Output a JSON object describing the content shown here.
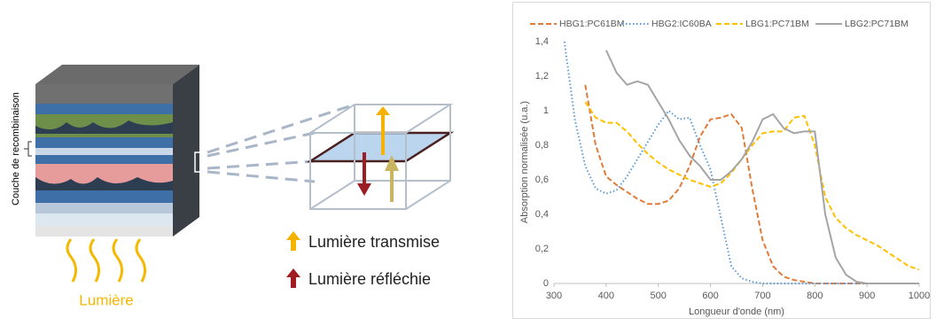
{
  "diagram": {
    "recombination_label": "Couche de recombinaison",
    "transmitted": "Lumière transmise",
    "reflected": "Lumière réfléchie",
    "light": "Lumière"
  },
  "chart_data": {
    "type": "line",
    "xlabel": "Longueur d'onde (nm)",
    "ylabel": "Absorption normalisée (u.a.)",
    "x": [
      320,
      340,
      360,
      380,
      400,
      420,
      440,
      460,
      480,
      500,
      520,
      540,
      560,
      580,
      600,
      620,
      640,
      660,
      680,
      700,
      720,
      740,
      760,
      780,
      800,
      820,
      840,
      860,
      880,
      900,
      920,
      940,
      960,
      980,
      1000
    ],
    "series": [
      {
        "name": "HBG1:PC61BM",
        "color": "#e07b39",
        "style": "dashed",
        "values": [
          null,
          null,
          1.15,
          0.8,
          0.62,
          0.57,
          0.53,
          0.49,
          0.46,
          0.46,
          0.48,
          0.55,
          0.68,
          0.85,
          0.95,
          0.96,
          0.98,
          0.9,
          0.55,
          0.25,
          0.1,
          0.04,
          0.02,
          0.01,
          0,
          0,
          0,
          0,
          0,
          0,
          0,
          0,
          0,
          0,
          0
        ]
      },
      {
        "name": "HBG2:IC60BA",
        "color": "#5b9bd5",
        "style": "dotted",
        "values": [
          1.4,
          0.95,
          0.68,
          0.55,
          0.52,
          0.54,
          0.62,
          0.72,
          0.82,
          0.92,
          1.0,
          0.95,
          0.96,
          0.8,
          0.66,
          0.38,
          0.1,
          0.03,
          0.01,
          0,
          0,
          0,
          0,
          0,
          0,
          0,
          0,
          0,
          0,
          0,
          0,
          0,
          0,
          0,
          0
        ]
      },
      {
        "name": "LBG1:PC71BM",
        "color": "#ffc000",
        "style": "dashed",
        "values": [
          null,
          null,
          1.05,
          0.96,
          0.93,
          0.93,
          0.88,
          0.81,
          0.75,
          0.7,
          0.66,
          0.63,
          0.6,
          0.58,
          0.56,
          0.58,
          0.64,
          0.72,
          0.8,
          0.87,
          0.88,
          0.88,
          0.96,
          0.97,
          0.8,
          0.5,
          0.38,
          0.32,
          0.28,
          0.25,
          0.22,
          0.18,
          0.14,
          0.1,
          0.08
        ]
      },
      {
        "name": "LBG2:PC71BM",
        "color": "#a5a5a5",
        "style": "solid",
        "values": [
          null,
          null,
          null,
          null,
          1.35,
          1.22,
          1.15,
          1.17,
          1.15,
          1.05,
          0.95,
          0.83,
          0.74,
          0.68,
          0.6,
          0.6,
          0.65,
          0.72,
          0.82,
          0.95,
          0.98,
          0.9,
          0.87,
          0.88,
          0.88,
          0.4,
          0.15,
          0.05,
          0.01,
          0,
          0,
          0,
          0,
          0,
          0
        ]
      }
    ],
    "xlim": [
      300,
      1000
    ],
    "xticks": [
      300,
      400,
      500,
      600,
      700,
      800,
      900,
      1000
    ],
    "ylim": [
      0,
      1.4
    ],
    "yticks": [
      0,
      {
        "value": 0.2,
        "label": "0,2"
      },
      {
        "value": 0.4,
        "label": "0,4"
      },
      {
        "value": 0.6,
        "label": "0,6"
      },
      {
        "value": 0.8,
        "label": "0,8"
      },
      1,
      {
        "value": 1.2,
        "label": "1,2"
      },
      {
        "value": 1.4,
        "label": "1,4"
      }
    ],
    "grid": false,
    "legend": "top"
  }
}
